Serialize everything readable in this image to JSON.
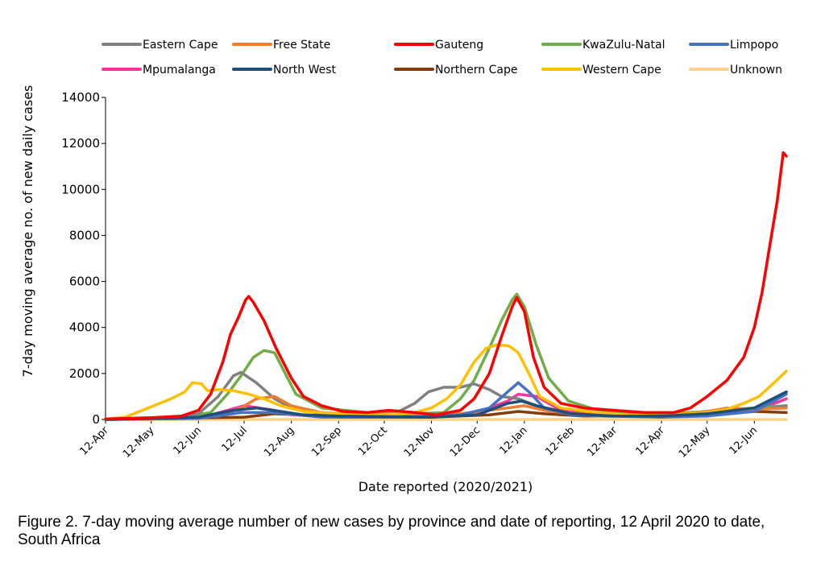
{
  "caption": "Figure 2. 7-day moving average number of new cases by province and date of reporting, 12 April 2020 to date, South Africa",
  "chart_data": {
    "type": "line",
    "title": "",
    "xlabel": "Date reported (2020/2021)",
    "ylabel": "7-day moving average no. of new daily cases",
    "ylim": [
      0,
      14000
    ],
    "yticks": [
      0,
      2000,
      4000,
      6000,
      8000,
      10000,
      12000,
      14000
    ],
    "x_start": "2020-04-12",
    "x_end": "2021-07-03",
    "xticks": [
      {
        "date": "2020-04-12",
        "label": "12-Apr"
      },
      {
        "date": "2020-05-12",
        "label": "12-May"
      },
      {
        "date": "2020-06-12",
        "label": "12-Jun"
      },
      {
        "date": "2020-07-12",
        "label": "12-Jul"
      },
      {
        "date": "2020-08-12",
        "label": "12-Aug"
      },
      {
        "date": "2020-09-12",
        "label": "12-Sep"
      },
      {
        "date": "2020-10-12",
        "label": "12-Oct"
      },
      {
        "date": "2020-11-12",
        "label": "12-Nov"
      },
      {
        "date": "2020-12-12",
        "label": "12-Dec"
      },
      {
        "date": "2021-01-12",
        "label": "12-Jan"
      },
      {
        "date": "2021-02-12",
        "label": "12-Feb"
      },
      {
        "date": "2021-03-12",
        "label": "12-Mar"
      },
      {
        "date": "2021-04-12",
        "label": "12-Apr"
      },
      {
        "date": "2021-05-12",
        "label": "12-May"
      },
      {
        "date": "2021-06-12",
        "label": "12-Jun"
      }
    ],
    "grid": false,
    "legend": "top",
    "series": [
      {
        "name": "Eastern Cape",
        "color": "#808080",
        "points": [
          [
            "2020-04-12",
            0
          ],
          [
            "2020-05-20",
            50
          ],
          [
            "2020-06-12",
            250
          ],
          [
            "2020-06-25",
            1000
          ],
          [
            "2020-07-05",
            1900
          ],
          [
            "2020-07-10",
            2050
          ],
          [
            "2020-07-20",
            1600
          ],
          [
            "2020-08-01",
            900
          ],
          [
            "2020-08-12",
            500
          ],
          [
            "2020-09-01",
            250
          ],
          [
            "2020-10-01",
            150
          ],
          [
            "2020-10-20",
            300
          ],
          [
            "2020-11-01",
            700
          ],
          [
            "2020-11-10",
            1200
          ],
          [
            "2020-11-20",
            1400
          ],
          [
            "2020-12-01",
            1400
          ],
          [
            "2020-12-10",
            1550
          ],
          [
            "2020-12-20",
            1300
          ],
          [
            "2020-12-28",
            1000
          ],
          [
            "2021-01-08",
            900
          ],
          [
            "2021-01-20",
            600
          ],
          [
            "2021-02-05",
            300
          ],
          [
            "2021-03-01",
            150
          ],
          [
            "2021-04-12",
            100
          ],
          [
            "2021-05-12",
            250
          ],
          [
            "2021-06-12",
            400
          ],
          [
            "2021-07-03",
            600
          ]
        ]
      },
      {
        "name": "Free State",
        "color": "#ed7d31",
        "points": [
          [
            "2020-04-12",
            0
          ],
          [
            "2020-06-01",
            50
          ],
          [
            "2020-06-25",
            150
          ],
          [
            "2020-07-10",
            500
          ],
          [
            "2020-07-20",
            900
          ],
          [
            "2020-08-01",
            1000
          ],
          [
            "2020-08-12",
            600
          ],
          [
            "2020-09-01",
            300
          ],
          [
            "2020-10-01",
            200
          ],
          [
            "2020-10-15",
            250
          ],
          [
            "2020-11-01",
            200
          ],
          [
            "2020-12-01",
            250
          ],
          [
            "2021-01-01",
            500
          ],
          [
            "2021-01-12",
            600
          ],
          [
            "2021-01-25",
            400
          ],
          [
            "2021-02-12",
            250
          ],
          [
            "2021-03-12",
            200
          ],
          [
            "2021-04-12",
            150
          ],
          [
            "2021-05-12",
            350
          ],
          [
            "2021-05-25",
            500
          ],
          [
            "2021-06-12",
            450
          ],
          [
            "2021-07-03",
            500
          ]
        ]
      },
      {
        "name": "Gauteng",
        "color": "#ff0000",
        "points": [
          [
            "2020-04-12",
            20
          ],
          [
            "2020-05-12",
            80
          ],
          [
            "2020-06-01",
            150
          ],
          [
            "2020-06-12",
            400
          ],
          [
            "2020-06-20",
            1100
          ],
          [
            "2020-06-28",
            2500
          ],
          [
            "2020-07-03",
            3700
          ],
          [
            "2020-07-08",
            4400
          ],
          [
            "2020-07-13",
            5200
          ],
          [
            "2020-07-15",
            5350
          ],
          [
            "2020-07-18",
            5100
          ],
          [
            "2020-07-25",
            4300
          ],
          [
            "2020-08-02",
            3100
          ],
          [
            "2020-08-12",
            1800
          ],
          [
            "2020-08-20",
            1000
          ],
          [
            "2020-09-01",
            600
          ],
          [
            "2020-09-15",
            350
          ],
          [
            "2020-10-01",
            300
          ],
          [
            "2020-10-15",
            400
          ],
          [
            "2020-11-01",
            300
          ],
          [
            "2020-11-15",
            200
          ],
          [
            "2020-12-01",
            400
          ],
          [
            "2020-12-10",
            900
          ],
          [
            "2020-12-20",
            2000
          ],
          [
            "2020-12-28",
            3600
          ],
          [
            "2021-01-04",
            4900
          ],
          [
            "2021-01-07",
            5300
          ],
          [
            "2021-01-12",
            4700
          ],
          [
            "2021-01-18",
            2700
          ],
          [
            "2021-01-25",
            1400
          ],
          [
            "2021-02-05",
            700
          ],
          [
            "2021-02-20",
            500
          ],
          [
            "2021-03-12",
            400
          ],
          [
            "2021-04-01",
            300
          ],
          [
            "2021-04-20",
            300
          ],
          [
            "2021-05-01",
            500
          ],
          [
            "2021-05-12",
            1000
          ],
          [
            "2021-05-25",
            1700
          ],
          [
            "2021-06-05",
            2700
          ],
          [
            "2021-06-12",
            4000
          ],
          [
            "2021-06-17",
            5500
          ],
          [
            "2021-06-22",
            7500
          ],
          [
            "2021-06-27",
            9500
          ],
          [
            "2021-07-01",
            11600
          ],
          [
            "2021-07-03",
            11450
          ]
        ]
      },
      {
        "name": "KwaZulu-Natal",
        "color": "#70ad47",
        "points": [
          [
            "2020-04-12",
            0
          ],
          [
            "2020-06-01",
            100
          ],
          [
            "2020-06-20",
            300
          ],
          [
            "2020-07-01",
            1100
          ],
          [
            "2020-07-10",
            1900
          ],
          [
            "2020-07-18",
            2700
          ],
          [
            "2020-07-25",
            3000
          ],
          [
            "2020-08-01",
            2900
          ],
          [
            "2020-08-08",
            2000
          ],
          [
            "2020-08-15",
            1100
          ],
          [
            "2020-09-01",
            500
          ],
          [
            "2020-10-01",
            300
          ],
          [
            "2020-11-01",
            250
          ],
          [
            "2020-11-20",
            300
          ],
          [
            "2020-12-01",
            900
          ],
          [
            "2020-12-10",
            1700
          ],
          [
            "2020-12-20",
            3100
          ],
          [
            "2020-12-28",
            4300
          ],
          [
            "2021-01-04",
            5200
          ],
          [
            "2021-01-07",
            5450
          ],
          [
            "2021-01-12",
            4900
          ],
          [
            "2021-01-20",
            3200
          ],
          [
            "2021-01-28",
            1800
          ],
          [
            "2021-02-10",
            800
          ],
          [
            "2021-03-01",
            400
          ],
          [
            "2021-04-01",
            250
          ],
          [
            "2021-05-01",
            300
          ],
          [
            "2021-06-01",
            450
          ],
          [
            "2021-07-03",
            600
          ]
        ]
      },
      {
        "name": "Limpopo",
        "color": "#4472c4",
        "points": [
          [
            "2020-04-12",
            0
          ],
          [
            "2020-06-12",
            50
          ],
          [
            "2020-07-10",
            300
          ],
          [
            "2020-08-01",
            300
          ],
          [
            "2020-09-01",
            100
          ],
          [
            "2020-11-01",
            100
          ],
          [
            "2020-12-01",
            200
          ],
          [
            "2020-12-20",
            500
          ],
          [
            "2021-01-01",
            1200
          ],
          [
            "2021-01-08",
            1600
          ],
          [
            "2021-01-15",
            1200
          ],
          [
            "2021-01-25",
            500
          ],
          [
            "2021-02-12",
            200
          ],
          [
            "2021-04-12",
            100
          ],
          [
            "2021-05-12",
            150
          ],
          [
            "2021-06-12",
            350
          ],
          [
            "2021-07-03",
            1100
          ]
        ]
      },
      {
        "name": "Mpumalanga",
        "color": "#ff3399",
        "points": [
          [
            "2020-04-12",
            0
          ],
          [
            "2020-06-12",
            50
          ],
          [
            "2020-07-12",
            600
          ],
          [
            "2020-08-01",
            400
          ],
          [
            "2020-08-12",
            200
          ],
          [
            "2020-09-12",
            100
          ],
          [
            "2020-11-12",
            100
          ],
          [
            "2020-12-12",
            300
          ],
          [
            "2021-01-01",
            800
          ],
          [
            "2021-01-08",
            1100
          ],
          [
            "2021-01-20",
            1000
          ],
          [
            "2021-02-05",
            400
          ],
          [
            "2021-03-12",
            200
          ],
          [
            "2021-04-12",
            150
          ],
          [
            "2021-05-12",
            200
          ],
          [
            "2021-06-12",
            350
          ],
          [
            "2021-07-03",
            900
          ]
        ]
      },
      {
        "name": "North West",
        "color": "#1f4e79",
        "points": [
          [
            "2020-04-12",
            0
          ],
          [
            "2020-06-12",
            100
          ],
          [
            "2020-07-05",
            400
          ],
          [
            "2020-07-20",
            500
          ],
          [
            "2020-08-05",
            350
          ],
          [
            "2020-08-20",
            200
          ],
          [
            "2020-09-12",
            150
          ],
          [
            "2020-11-12",
            100
          ],
          [
            "2020-12-12",
            200
          ],
          [
            "2021-01-01",
            700
          ],
          [
            "2021-01-10",
            800
          ],
          [
            "2021-01-20",
            600
          ],
          [
            "2021-02-12",
            250
          ],
          [
            "2021-03-12",
            150
          ],
          [
            "2021-04-12",
            150
          ],
          [
            "2021-05-12",
            250
          ],
          [
            "2021-06-12",
            500
          ],
          [
            "2021-07-03",
            1200
          ]
        ]
      },
      {
        "name": "Northern Cape",
        "color": "#843c0c",
        "points": [
          [
            "2020-04-12",
            0
          ],
          [
            "2020-07-12",
            100
          ],
          [
            "2020-08-01",
            250
          ],
          [
            "2020-08-20",
            200
          ],
          [
            "2020-09-20",
            100
          ],
          [
            "2020-11-12",
            100
          ],
          [
            "2020-12-20",
            200
          ],
          [
            "2021-01-08",
            350
          ],
          [
            "2021-01-25",
            250
          ],
          [
            "2021-02-20",
            150
          ],
          [
            "2021-04-12",
            150
          ],
          [
            "2021-05-12",
            300
          ],
          [
            "2021-06-12",
            350
          ],
          [
            "2021-07-03",
            300
          ]
        ]
      },
      {
        "name": "Western Cape",
        "color": "#ffc000",
        "points": [
          [
            "2020-04-12",
            20
          ],
          [
            "2020-04-25",
            100
          ],
          [
            "2020-05-10",
            500
          ],
          [
            "2020-05-25",
            900
          ],
          [
            "2020-06-03",
            1200
          ],
          [
            "2020-06-08",
            1600
          ],
          [
            "2020-06-14",
            1550
          ],
          [
            "2020-06-18",
            1250
          ],
          [
            "2020-06-25",
            1300
          ],
          [
            "2020-07-05",
            1250
          ],
          [
            "2020-07-15",
            1100
          ],
          [
            "2020-07-25",
            900
          ],
          [
            "2020-08-05",
            600
          ],
          [
            "2020-08-20",
            350
          ],
          [
            "2020-09-12",
            250
          ],
          [
            "2020-10-12",
            200
          ],
          [
            "2020-11-01",
            300
          ],
          [
            "2020-11-12",
            500
          ],
          [
            "2020-11-22",
            900
          ],
          [
            "2020-12-01",
            1500
          ],
          [
            "2020-12-10",
            2500
          ],
          [
            "2020-12-18",
            3100
          ],
          [
            "2020-12-25",
            3250
          ],
          [
            "2021-01-02",
            3200
          ],
          [
            "2021-01-08",
            2900
          ],
          [
            "2021-01-15",
            2000
          ],
          [
            "2021-01-22",
            1000
          ],
          [
            "2021-02-05",
            500
          ],
          [
            "2021-03-01",
            300
          ],
          [
            "2021-03-20",
            200
          ],
          [
            "2021-04-12",
            150
          ],
          [
            "2021-05-01",
            250
          ],
          [
            "2021-05-12",
            300
          ],
          [
            "2021-05-25",
            450
          ],
          [
            "2021-06-05",
            700
          ],
          [
            "2021-06-15",
            1000
          ],
          [
            "2021-06-25",
            1600
          ],
          [
            "2021-07-03",
            2100
          ]
        ]
      },
      {
        "name": "Unknown",
        "color": "#ffd08a",
        "points": [
          [
            "2020-04-12",
            0
          ],
          [
            "2021-07-03",
            0
          ]
        ]
      }
    ]
  }
}
